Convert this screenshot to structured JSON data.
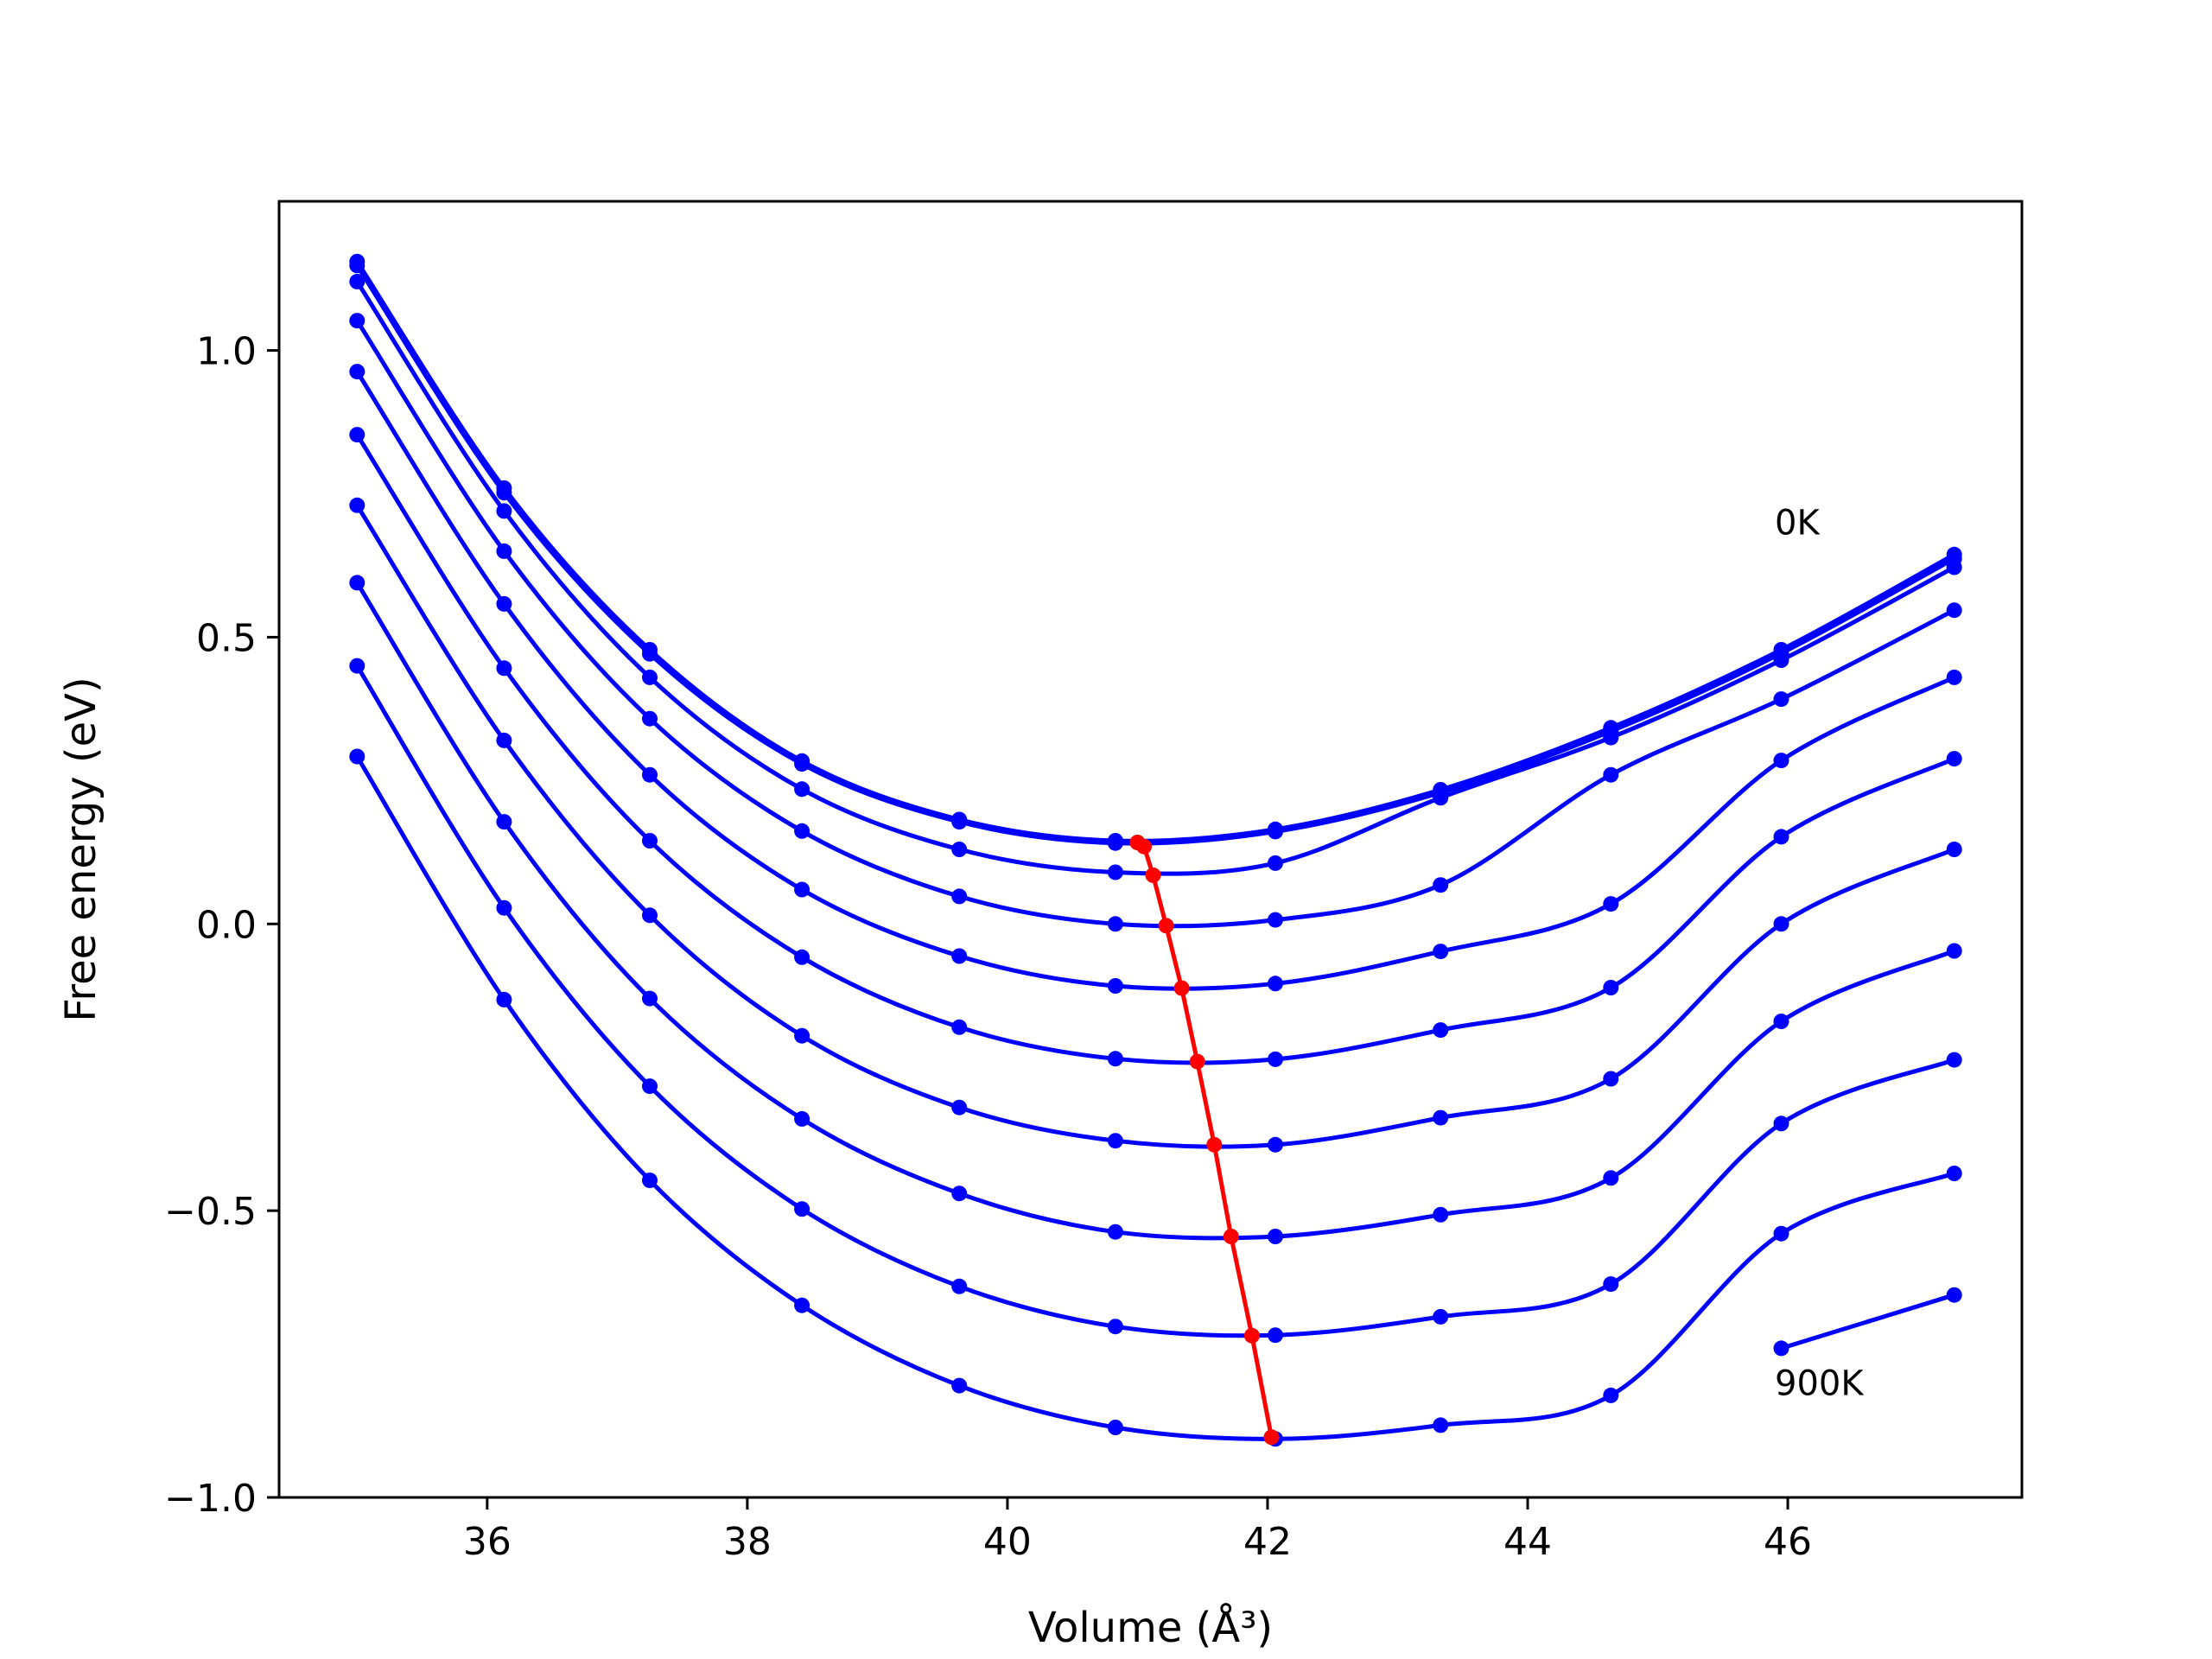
{
  "chart_data": {
    "type": "line",
    "title": "",
    "xlabel": "Volume (Å³)",
    "ylabel": "Free energy (eV)",
    "xlim": [
      34.4,
      47.8
    ],
    "ylim": [
      -1.0,
      1.26
    ],
    "x_ticks": [
      36,
      38,
      40,
      42,
      44,
      46
    ],
    "y_ticks": [
      1.0,
      0.5,
      0.0,
      -0.5,
      -1.0
    ],
    "x_tick_labels": [
      "36",
      "38",
      "40",
      "42",
      "44",
      "46"
    ],
    "y_tick_labels": [
      "1.0",
      "0.5",
      "0.0",
      "−0.5",
      "−1.0"
    ],
    "grid": false,
    "legend": "none",
    "colors": {
      "curves": "#0000ff",
      "minima": "#ff0000",
      "frame": "#000000"
    },
    "annotations": [
      {
        "text": "0K",
        "x": 45.9,
        "y": 0.7
      },
      {
        "text": "900K",
        "x": 45.9,
        "y": -0.8
      }
    ],
    "x": [
      35.0,
      36.13,
      37.25,
      38.42,
      39.63,
      40.83,
      42.06,
      43.33,
      44.64,
      45.95,
      47.28
    ],
    "series": [
      {
        "values": [
          1.155,
          0.76,
          0.478,
          0.284,
          0.182,
          0.145,
          0.165,
          0.234,
          0.342,
          0.478,
          0.644
        ]
      },
      {
        "values": [
          1.148,
          0.752,
          0.471,
          0.279,
          0.178,
          0.141,
          0.161,
          0.229,
          0.336,
          0.472,
          0.637
        ]
      },
      {
        "values": [
          1.12,
          0.72,
          0.43,
          0.235,
          0.13,
          0.09,
          0.106,
          0.22,
          0.325,
          0.46,
          0.622
        ]
      },
      {
        "values": [
          1.052,
          0.65,
          0.358,
          0.162,
          0.048,
          0.0,
          0.007,
          0.068,
          0.26,
          0.392,
          0.547
        ]
      },
      {
        "values": [
          0.963,
          0.558,
          0.26,
          0.06,
          -0.056,
          -0.108,
          -0.104,
          -0.048,
          0.035,
          0.285,
          0.43
        ]
      },
      {
        "values": [
          0.853,
          0.446,
          0.145,
          -0.058,
          -0.18,
          -0.235,
          -0.236,
          -0.185,
          -0.111,
          0.152,
          0.288
        ]
      },
      {
        "values": [
          0.73,
          0.32,
          0.015,
          -0.195,
          -0.32,
          -0.378,
          -0.385,
          -0.338,
          -0.27,
          0.0,
          0.13
        ]
      },
      {
        "values": [
          0.595,
          0.178,
          -0.13,
          -0.34,
          -0.47,
          -0.537,
          -0.545,
          -0.507,
          -0.443,
          -0.17,
          -0.047
        ]
      },
      {
        "values": [
          0.45,
          0.028,
          -0.283,
          -0.497,
          -0.632,
          -0.702,
          -0.717,
          -0.685,
          -0.628,
          -0.348,
          -0.237
        ]
      },
      {
        "values": [
          0.292,
          -0.132,
          -0.447,
          -0.665,
          -0.805,
          -0.878,
          -0.898,
          -0.874,
          -0.822,
          -0.54,
          -0.435
        ]
      },
      {
        "values": [
          null,
          null,
          null,
          null,
          null,
          null,
          null,
          null,
          null,
          -0.74,
          -0.647
        ]
      }
    ],
    "minima": {
      "x": [
        41.0,
        41.05,
        41.12,
        41.22,
        41.34,
        41.46,
        41.59,
        41.72,
        41.88,
        42.03
      ],
      "y": [
        0.142,
        0.135,
        0.085,
        -0.003,
        -0.112,
        -0.24,
        -0.385,
        -0.545,
        -0.718,
        -0.895
      ]
    }
  }
}
